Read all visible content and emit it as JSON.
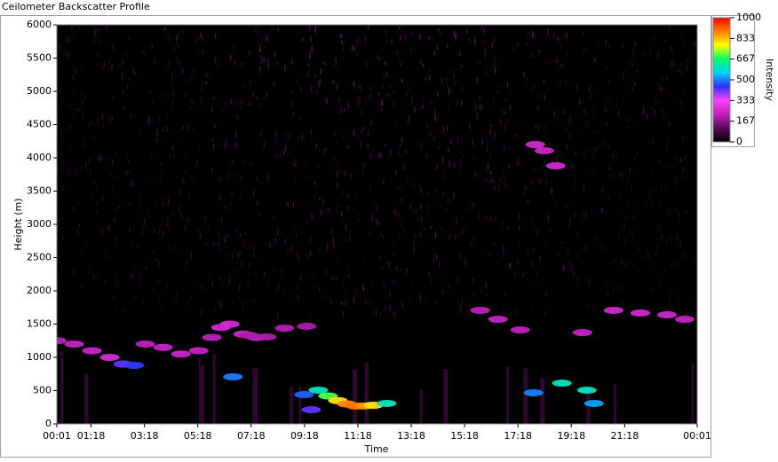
{
  "chart_data": {
    "type": "heatmap",
    "title": "Ceilometer Backscatter Profile",
    "x_label": "Time",
    "y_label": "Height (m)",
    "colorbar_label": "Intensity",
    "xlim": [
      1,
      1441
    ],
    "xticks": [
      {
        "value": 1,
        "label": "00:01"
      },
      {
        "value": 78,
        "label": "01:18"
      },
      {
        "value": 198,
        "label": "03:18"
      },
      {
        "value": 318,
        "label": "05:18"
      },
      {
        "value": 438,
        "label": "07:18"
      },
      {
        "value": 558,
        "label": "09:18"
      },
      {
        "value": 678,
        "label": "11:18"
      },
      {
        "value": 798,
        "label": "13:18"
      },
      {
        "value": 918,
        "label": "15:18"
      },
      {
        "value": 1038,
        "label": "17:18"
      },
      {
        "value": 1158,
        "label": "19:18"
      },
      {
        "value": 1278,
        "label": "21:18"
      },
      {
        "value": 1441,
        "label": "00:01"
      }
    ],
    "ylim": [
      0,
      6000
    ],
    "yticks": [
      0,
      500,
      1000,
      1500,
      2000,
      2500,
      3000,
      3500,
      4000,
      4500,
      5000,
      5500,
      6000
    ],
    "clim": [
      0,
      1000
    ],
    "cticks": [
      0,
      167,
      333,
      500,
      667,
      833,
      1000
    ],
    "colorscale": [
      "#000000",
      "#5a0a5a",
      "#c020c0",
      "#ff40ff",
      "#3030ff",
      "#00d0ff",
      "#00ff60",
      "#ffff00",
      "#ff8000",
      "#ff0000"
    ],
    "x": [
      1,
      40,
      80,
      120,
      150,
      175,
      200,
      240,
      280,
      320,
      350,
      370,
      390,
      420,
      450,
      433,
      473,
      513,
      563,
      397,
      573,
      589,
      611,
      633,
      653,
      673,
      693,
      713,
      743,
      557,
      1073,
      1137,
      1193,
      1209,
      953,
      993,
      1043,
      1183,
      1253,
      1313,
      1373,
      1413,
      1077,
      1097,
      1123
    ],
    "y": [
      1250,
      1200,
      1100,
      1000,
      900,
      880,
      1200,
      1150,
      1050,
      1100,
      1300,
      1450,
      1500,
      1350,
      1300,
      1333,
      1307,
      1440,
      1467,
      707,
      213,
      507,
      420,
      350,
      300,
      267,
      270,
      280,
      307,
      440,
      467,
      613,
      507,
      307,
      1707,
      1573,
      1413,
      1373,
      1707,
      1667,
      1640,
      1573,
      4200,
      4107,
      3880
    ],
    "intensity": [
      220,
      230,
      240,
      260,
      420,
      450,
      220,
      230,
      240,
      230,
      220,
      250,
      260,
      240,
      230,
      200,
      200,
      210,
      200,
      500,
      420,
      600,
      700,
      800,
      880,
      900,
      870,
      800,
      600,
      480,
      500,
      600,
      600,
      520,
      220,
      230,
      220,
      230,
      250,
      250,
      240,
      230,
      250,
      240,
      250
    ]
  }
}
